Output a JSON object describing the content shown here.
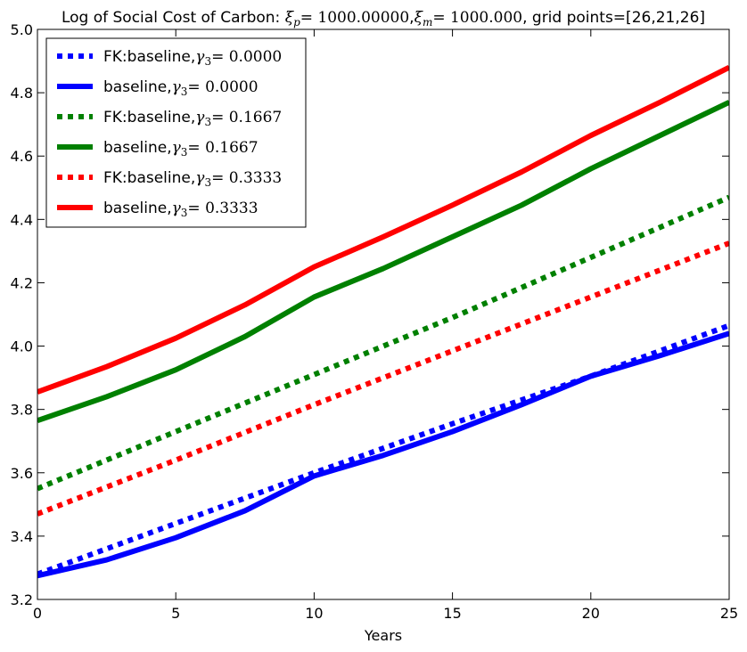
{
  "chart_data": {
    "type": "line",
    "title": {
      "prefix": "Log of Social Cost of Carbon: ",
      "xi_p_symbol": "ξ",
      "xi_p_sub": "p",
      "xi_p_value": "= 1000.00000",
      "separator": ",",
      "xi_m_symbol": "ξ",
      "xi_m_sub": "m",
      "xi_m_value": "= 1000.000",
      "suffix": ", grid points=[26,21,26]"
    },
    "xlabel": "Years",
    "ylabel": "",
    "xlim": [
      0,
      25
    ],
    "ylim": [
      3.2,
      5.0
    ],
    "xticks": [
      0,
      5,
      10,
      15,
      20,
      25
    ],
    "yticks": [
      3.2,
      3.4,
      3.6,
      3.8,
      4.0,
      4.2,
      4.4,
      4.6,
      4.8,
      5.0
    ],
    "ytick_labels": [
      "3.2",
      "3.4",
      "3.6",
      "3.8",
      "4.0",
      "4.2",
      "4.4",
      "4.6",
      "4.8",
      "5.0"
    ],
    "xtick_labels": [
      "0",
      "5",
      "10",
      "15",
      "20",
      "25"
    ],
    "grid": false,
    "legend_position": "top-left",
    "series": [
      {
        "id": "fk-g0",
        "label_prefix": "FK:baseline,",
        "gamma_value": "= 0.0000",
        "color": "#0000ff",
        "style": "dotted",
        "x": [
          0,
          5,
          10,
          15,
          20,
          25
        ],
        "y": [
          3.28,
          3.44,
          3.6,
          3.755,
          3.905,
          4.065
        ]
      },
      {
        "id": "base-g0",
        "label_prefix": "baseline,",
        "gamma_value": "= 0.0000",
        "color": "#0000ff",
        "style": "solid",
        "x": [
          0,
          2.5,
          5,
          7.5,
          10,
          12.5,
          15,
          17.5,
          20,
          22.5,
          25
        ],
        "y": [
          3.275,
          3.325,
          3.395,
          3.48,
          3.59,
          3.655,
          3.73,
          3.815,
          3.905,
          3.97,
          4.04
        ]
      },
      {
        "id": "fk-g1",
        "label_prefix": "FK:baseline,",
        "gamma_value": "= 0.1667",
        "color": "#008000",
        "style": "dotted",
        "x": [
          0,
          5,
          10,
          15,
          20,
          25
        ],
        "y": [
          3.55,
          3.73,
          3.91,
          4.09,
          4.28,
          4.47
        ]
      },
      {
        "id": "base-g1",
        "label_prefix": "baseline,",
        "gamma_value": "= 0.1667",
        "color": "#008000",
        "style": "solid",
        "x": [
          0,
          2.5,
          5,
          7.5,
          10,
          12.5,
          15,
          17.5,
          20,
          22.5,
          25
        ],
        "y": [
          3.765,
          3.84,
          3.925,
          4.03,
          4.155,
          4.245,
          4.345,
          4.445,
          4.56,
          4.665,
          4.77
        ]
      },
      {
        "id": "fk-g2",
        "label_prefix": "FK:baseline,",
        "gamma_value": "= 0.3333",
        "color": "#ff0000",
        "style": "dotted",
        "x": [
          0,
          5,
          10,
          15,
          20,
          25
        ],
        "y": [
          3.47,
          3.64,
          3.815,
          3.985,
          4.155,
          4.325
        ]
      },
      {
        "id": "base-g2",
        "label_prefix": "baseline,",
        "gamma_value": "= 0.3333",
        "color": "#ff0000",
        "style": "solid",
        "x": [
          0,
          2.5,
          5,
          7.5,
          10,
          12.5,
          15,
          17.5,
          20,
          22.5,
          25
        ],
        "y": [
          3.855,
          3.935,
          4.025,
          4.13,
          4.25,
          4.345,
          4.445,
          4.55,
          4.665,
          4.77,
          4.88
        ]
      }
    ]
  }
}
